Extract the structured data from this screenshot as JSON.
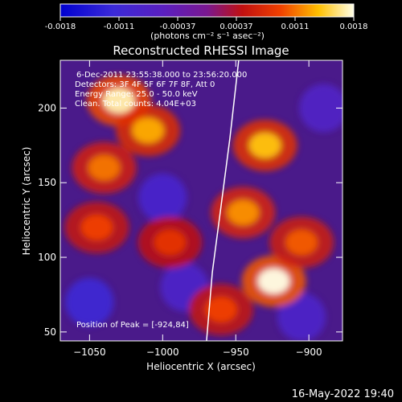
{
  "chart_data": {
    "type": "heatmap",
    "title": "Reconstructed RHESSI Image",
    "xlabel": "Heliocentric X (arcsec)",
    "ylabel": "Heliocentric Y (arcsec)",
    "x_ticks": [
      -1050,
      -1000,
      -950,
      -900
    ],
    "y_ticks": [
      50,
      100,
      150,
      200
    ],
    "xlim": [
      -1070,
      -877
    ],
    "ylim": [
      44,
      232
    ],
    "colorbar": {
      "unit_label": "(photons cm⁻² s⁻¹ asec⁻²)",
      "range": [
        -0.0018,
        0.0018
      ],
      "tick_labels": [
        "-0.0018",
        "-0.0011",
        "-0.00037",
        "0.00037",
        "0.0011",
        "0.0018"
      ]
    },
    "annotations": [
      "6-Dec-2011 23:55:38.000 to 23:56:20.000",
      "Detectors: 3F 4F 5F 6F 7F 8F, Att 0",
      "Energy Range: 25.0 - 50.0 keV",
      "Clean. Total counts: 4.04E+03",
      "Position of Peak = [-924,84]"
    ],
    "limb_curve": [
      [
        -970,
        44
      ],
      [
        -966,
        90
      ],
      [
        -960,
        135
      ],
      [
        -954,
        180
      ],
      [
        -948,
        232
      ]
    ],
    "hotspots": [
      {
        "x": -1030,
        "y": 205,
        "value": 0.0017
      },
      {
        "x": -1010,
        "y": 185,
        "value": 0.0013
      },
      {
        "x": -1040,
        "y": 160,
        "value": 0.0011
      },
      {
        "x": -1045,
        "y": 120,
        "value": 0.0009
      },
      {
        "x": -995,
        "y": 110,
        "value": 0.0008
      },
      {
        "x": -930,
        "y": 175,
        "value": 0.0014
      },
      {
        "x": -945,
        "y": 130,
        "value": 0.0012
      },
      {
        "x": -924,
        "y": 84,
        "value": 0.0018
      },
      {
        "x": -905,
        "y": 110,
        "value": 0.001
      },
      {
        "x": -960,
        "y": 65,
        "value": 0.0009
      }
    ],
    "coldspots": [
      {
        "x": -1000,
        "y": 140,
        "value": -0.0009
      },
      {
        "x": -1050,
        "y": 70,
        "value": -0.0011
      },
      {
        "x": -985,
        "y": 80,
        "value": -0.0008
      },
      {
        "x": -890,
        "y": 200,
        "value": -0.0007
      },
      {
        "x": -905,
        "y": 60,
        "value": -0.0008
      }
    ]
  },
  "footer": {
    "date": "16-May-2022 19:40"
  }
}
